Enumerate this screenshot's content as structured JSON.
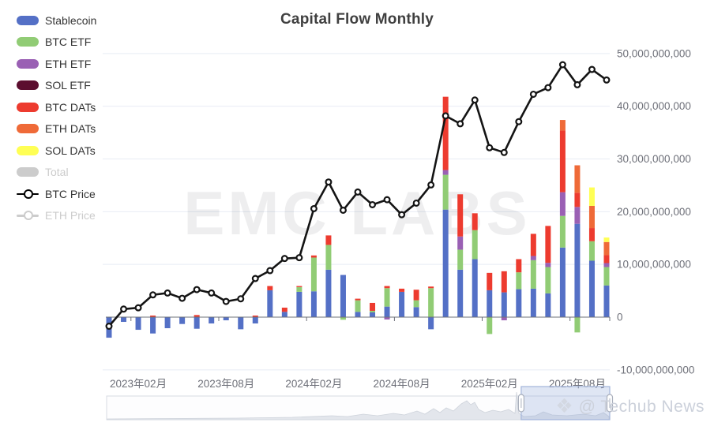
{
  "app": {
    "title": "Capital Flow Monthly"
  },
  "watermark": "EMC LABS",
  "credit": {
    "icon_glyph": "❖",
    "icon_name": "techub-diamond-logo",
    "label": "@ Techub News"
  },
  "colors": {
    "stablecoin": "#5470C6",
    "btc_etf": "#91CC75",
    "eth_etf": "#9A60B4",
    "sol_etf": "#5C0E2F",
    "btc_dats": "#ED3B2F",
    "eth_dats": "#EF6A38",
    "sol_dats": "#FFFF55",
    "total_disabled": "#CCCCCC",
    "btc_price": "#141414",
    "eth_price_disabled": "#CCCCCC",
    "axis_label": "#6E7079",
    "grid_line": "#E8ECF4",
    "axis_line": "#6E7079"
  },
  "legend": {
    "items": [
      {
        "key": "stablecoin",
        "label": "Stablecoin",
        "icon": "bar",
        "color": "#5470C6",
        "disabled": false
      },
      {
        "key": "btc-etf",
        "label": "BTC ETF",
        "icon": "bar",
        "color": "#91CC75",
        "disabled": false
      },
      {
        "key": "eth-etf",
        "label": "ETH ETF",
        "icon": "bar",
        "color": "#9A60B4",
        "disabled": false
      },
      {
        "key": "sol-etf",
        "label": "SOL ETF",
        "icon": "bar",
        "color": "#5C0E2F",
        "disabled": false
      },
      {
        "key": "btc-dats",
        "label": "BTC DATs",
        "icon": "bar",
        "color": "#ED3B2F",
        "disabled": false
      },
      {
        "key": "eth-dats",
        "label": "ETH DATs",
        "icon": "bar",
        "color": "#EF6A38",
        "disabled": false
      },
      {
        "key": "sol-dats",
        "label": "SOL DATs",
        "icon": "bar",
        "color": "#FFFF55",
        "disabled": false
      },
      {
        "key": "total",
        "label": "Total",
        "icon": "bar",
        "color": "#CCCCCC",
        "disabled": true
      },
      {
        "key": "btc-price",
        "label": "BTC Price",
        "icon": "line",
        "color": "#000000",
        "disabled": false
      },
      {
        "key": "eth-price",
        "label": "ETH Price",
        "icon": "line",
        "color": "#CCCCCC",
        "disabled": true
      }
    ]
  },
  "y_axis": {
    "position": "right",
    "ticks": [
      {
        "value_billion": 50,
        "label": "50,000,000,000"
      },
      {
        "value_billion": 40,
        "label": "40,000,000,000"
      },
      {
        "value_billion": 30,
        "label": "30,000,000,000"
      },
      {
        "value_billion": 20,
        "label": "20,000,000,000"
      },
      {
        "value_billion": 10,
        "label": "10,000,000,000"
      },
      {
        "value_billion": 0,
        "label": "0"
      },
      {
        "value_billion": -10,
        "label": "-10,000,000,000"
      }
    ]
  },
  "x_axis": {
    "visible_labels": [
      "2023年02月",
      "2023年08月",
      "2024年02月",
      "2024年08月",
      "2025年02月",
      "2025年08月"
    ]
  },
  "chart_data": {
    "type": "bar",
    "subtype": "stacked-bar-with-line",
    "title": "Capital Flow Monthly",
    "unit": "USD",
    "values_unit": "billion USD",
    "ylim_billion": [
      -10,
      50
    ],
    "grid": true,
    "legend_position": "left",
    "hidden_price_axis_usd": [
      0,
      120000
    ],
    "categories": [
      "2022年12月",
      "2023年01月",
      "2023年02月",
      "2023年03月",
      "2023年04月",
      "2023年05月",
      "2023年06月",
      "2023年07月",
      "2023年08月",
      "2023年09月",
      "2023年10月",
      "2023年11月",
      "2023年12月",
      "2024年01月",
      "2024年02月",
      "2024年03月",
      "2024年04月",
      "2024年05月",
      "2024年06月",
      "2024年07月",
      "2024年08月",
      "2024年09月",
      "2024年10月",
      "2024年11月",
      "2024年12月",
      "2025年01月",
      "2025年02月",
      "2025年03月",
      "2025年04月",
      "2025年05月",
      "2025年06月",
      "2025年07月",
      "2025年08月",
      "2025年09月",
      "2025年10月"
    ],
    "series": [
      {
        "name": "Stablecoin",
        "color": "#5470C6",
        "values_billion": [
          -3.9,
          -0.9,
          -2.4,
          -3.1,
          -2.1,
          -1.3,
          -2.2,
          -1.2,
          -0.6,
          -2.3,
          -1.2,
          5.1,
          1.0,
          4.8,
          4.9,
          9.0,
          8.0,
          1.0,
          0.9,
          2.0,
          4.8,
          1.9,
          -2.3,
          20.4,
          9.0,
          11.0,
          5.1,
          4.7,
          5.3,
          5.4,
          4.5,
          13.2,
          17.7,
          10.7,
          6.0
        ]
      },
      {
        "name": "BTC ETF",
        "color": "#91CC75",
        "values_billion": [
          0,
          0,
          0,
          0,
          0,
          0,
          0,
          0,
          0,
          0,
          0,
          0,
          0,
          0.9,
          6.4,
          4.7,
          -0.5,
          2.2,
          0.3,
          3.5,
          0,
          1.3,
          5.5,
          6.6,
          3.8,
          5.5,
          -3.2,
          0,
          3.2,
          5.4,
          5.0,
          6.0,
          -2.9,
          3.7,
          3.5
        ]
      },
      {
        "name": "ETH ETF",
        "color": "#9A60B4",
        "values_billion": [
          0,
          0,
          0,
          0,
          0,
          0,
          0,
          0,
          0,
          0,
          0,
          0,
          0,
          0,
          0,
          0,
          0,
          0,
          0,
          -0.45,
          0,
          0,
          0,
          0.9,
          2.5,
          0,
          0,
          -0.6,
          0,
          0.8,
          0.8,
          4.5,
          3.2,
          0,
          0.75
        ]
      },
      {
        "name": "SOL ETF",
        "color": "#5C0E2F",
        "values_billion": [
          0,
          0,
          0,
          0,
          0,
          0,
          0,
          0,
          0,
          0,
          0,
          0,
          0,
          0,
          0,
          0,
          0,
          0,
          0,
          0,
          0,
          0,
          0,
          0,
          0,
          0,
          0,
          0,
          0,
          0,
          0,
          0,
          0,
          0,
          0
        ]
      },
      {
        "name": "BTC DATs",
        "color": "#ED3B2F",
        "values_billion": [
          0,
          0,
          0,
          0.3,
          0,
          0,
          0.4,
          0,
          0,
          0,
          0.3,
          0.8,
          0.8,
          0.2,
          0.4,
          1.8,
          0,
          0.3,
          1.5,
          0.4,
          0.6,
          2.0,
          0.3,
          13.9,
          8.0,
          3.2,
          3.3,
          4.0,
          2.5,
          4.2,
          7.0,
          11.7,
          2.7,
          2.5,
          1.5
        ]
      },
      {
        "name": "ETH DATs",
        "color": "#EF6A38",
        "values_billion": [
          0,
          0,
          0,
          0,
          0,
          0,
          0,
          0,
          0,
          0,
          0,
          0,
          0,
          0,
          0,
          0,
          0,
          0,
          0,
          0,
          0,
          0,
          0,
          0,
          0,
          0,
          0,
          0,
          0,
          0,
          0,
          2.0,
          5.2,
          4.2,
          2.5
        ]
      },
      {
        "name": "SOL DATs",
        "color": "#FFFF55",
        "values_billion": [
          0,
          0,
          0,
          0,
          0,
          0,
          0,
          0,
          0,
          0,
          0,
          0,
          0,
          0,
          0,
          0,
          0,
          0,
          0,
          0,
          0,
          0,
          0,
          0,
          0,
          0,
          0,
          0,
          0,
          0,
          0,
          0,
          0,
          3.5,
          0.85
        ]
      }
    ],
    "line_series": {
      "name": "BTC Price",
      "color": "#141414",
      "values_usd": [
        16600,
        23100,
        23600,
        28500,
        29200,
        27200,
        30500,
        29200,
        26000,
        27000,
        34700,
        37700,
        42300,
        42600,
        61200,
        71300,
        60600,
        67500,
        62700,
        64600,
        58900,
        63300,
        70200,
        96400,
        93400,
        102400,
        84300,
        82500,
        94200,
        104600,
        107100,
        115800,
        108200,
        114000,
        110000
      ]
    },
    "datazoom": {
      "window_start_pct": 82.4,
      "window_end_pct": 100
    }
  }
}
